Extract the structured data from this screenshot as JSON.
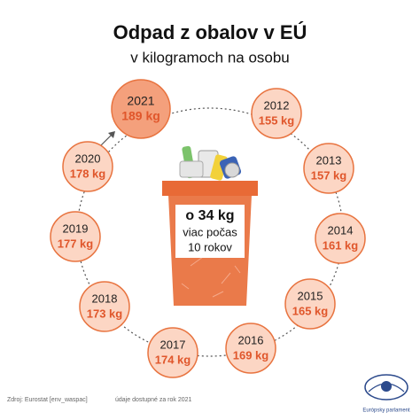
{
  "chart_data": {
    "type": "ring",
    "title": "Odpad z obalov v EÚ",
    "subtitle": "v kilogramoch na osobu",
    "categories": [
      "2012",
      "2013",
      "2014",
      "2015",
      "2016",
      "2017",
      "2018",
      "2019",
      "2020",
      "2021"
    ],
    "values": [
      155,
      157,
      161,
      165,
      169,
      174,
      173,
      177,
      178,
      189
    ],
    "value_labels": [
      "155 kg",
      "157 kg",
      "161 kg",
      "165 kg",
      "169 kg",
      "174 kg",
      "173 kg",
      "177 kg",
      "178 kg",
      "189 kg"
    ],
    "colors": [
      "#fcd6c4",
      "#fcd6c4",
      "#fcd6c4",
      "#fcd6c4",
      "#fcd6c4",
      "#fcd6c4",
      "#fcd6c4",
      "#fcd6c4",
      "#fcd6c4",
      "#f4a07c"
    ],
    "annotation": {
      "amount": "o 34 kg",
      "line1": "viac počas",
      "line2": "10 rokov"
    },
    "source": "Zdroj: Eurostat [env_waspac]",
    "note": "údaje dostupné za rok 2021",
    "logo": "Európsky parlament"
  }
}
